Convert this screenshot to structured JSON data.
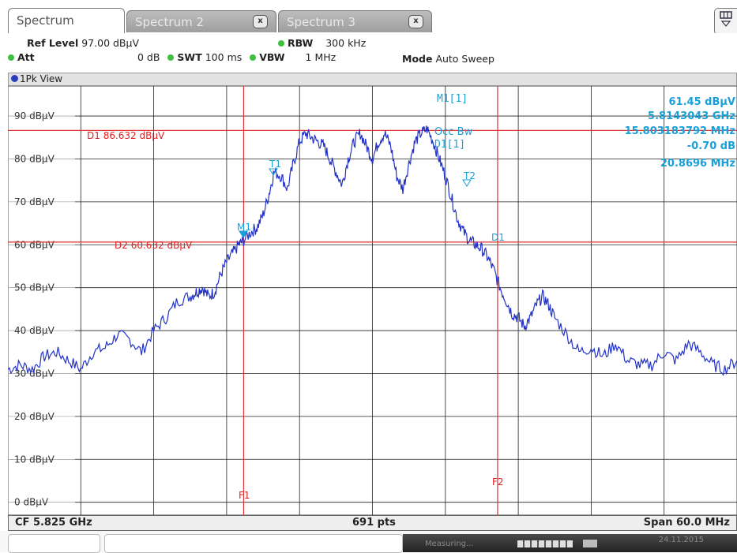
{
  "tabs": [
    {
      "label": "Spectrum",
      "active": true
    },
    {
      "label": "Spectrum 2",
      "active": false,
      "close": "x"
    },
    {
      "label": "Spectrum 3",
      "active": false,
      "close": "x"
    }
  ],
  "params": {
    "ref_level_label": "Ref Level",
    "ref_level_value": "97.00 dBµV",
    "att_label": "Att",
    "att_value": "0 dB",
    "swt_label": "SWT",
    "swt_value": "100 ms",
    "rbw_label": "RBW",
    "rbw_value": "300 kHz",
    "vbw_label": "VBW",
    "vbw_value": "1 MHz",
    "mode_label": "Mode",
    "mode_value": "Auto Sweep"
  },
  "view_label": "1Pk View",
  "markers": {
    "m1_label": "M1[1]",
    "m1_level": "61.45 dBµV",
    "m1_freq": "5.8143043 GHz",
    "occbw_label": "Occ Bw",
    "occbw_value": "15.803183792 MHz",
    "d1_label": "D1[1]",
    "d1_level": "-0.70 dB",
    "d1_freq": "20.8696 MHz"
  },
  "lines": {
    "d1_label": "D1  86.632 dBµV",
    "d2_label": "D2  60.632 dBµV",
    "f1_label": "F1",
    "f2_label": "F2",
    "t1_label": "T1",
    "t2_label": "T2",
    "m1_trace_label": "M1",
    "d1_trace_label": "D1"
  },
  "chart_data": {
    "type": "line",
    "y_tick_labels": [
      "90 dBµV",
      "80 dBµV",
      "70 dBµV",
      "60 dBµV",
      "50 dBµV",
      "40 dBµV",
      "30 dBµV",
      "20 dBµV",
      "10 dBµV",
      "0 dBµV"
    ],
    "y_ticks": [
      90,
      80,
      70,
      60,
      50,
      40,
      30,
      20,
      10,
      0
    ],
    "ylim": [
      -3,
      97
    ],
    "xlim": [
      -30,
      30
    ],
    "display_line_d1": 86.632,
    "display_line_d2": 60.632,
    "f1_offset": -10.6,
    "f2_offset": 10.3,
    "series": [
      {
        "color": "#2332c8",
        "x": [
          -30,
          -29,
          -28,
          -27,
          -26,
          -25,
          -24,
          -23,
          -22,
          -21,
          -20,
          -19,
          -18,
          -17,
          -16,
          -15,
          -14.5,
          -14,
          -13.5,
          -13,
          -12.5,
          -12,
          -11.5,
          -11,
          -10.6,
          -10,
          -9.5,
          -9,
          -8.5,
          -8.1,
          -7.5,
          -7,
          -6.5,
          -6,
          -5.5,
          -5,
          -4.5,
          -4,
          -3.5,
          -3,
          -2.5,
          -2,
          -1.5,
          -1,
          -0.5,
          0,
          0.5,
          1,
          1.5,
          2,
          2.5,
          3,
          3.5,
          4,
          4.5,
          5,
          5.5,
          6,
          6.5,
          7,
          7.5,
          8,
          8.5,
          9,
          9.5,
          10,
          10.5,
          11,
          11.5,
          12,
          12.5,
          13,
          13.5,
          14,
          14.5,
          15,
          16,
          17,
          18,
          19,
          20,
          21,
          22,
          23,
          24,
          25,
          26,
          27,
          28,
          29,
          30
        ],
        "y": [
          31,
          32,
          31,
          34,
          35,
          33,
          31,
          35,
          36,
          39,
          38,
          35,
          40,
          43,
          47,
          48,
          49,
          50,
          48,
          49,
          53,
          56,
          58,
          60,
          61,
          63,
          64,
          67,
          72,
          77,
          76,
          73,
          79,
          84,
          86,
          85,
          84,
          83,
          80,
          77,
          74,
          80,
          84,
          86,
          83,
          80,
          84,
          86,
          83,
          76,
          73,
          79,
          84,
          86,
          87,
          84,
          80,
          76,
          71,
          66,
          63,
          61,
          60,
          59,
          57,
          54,
          50,
          47,
          44,
          43,
          41,
          43,
          46,
          48,
          46,
          43,
          39,
          35,
          36,
          34,
          37,
          33,
          32,
          32,
          35,
          33,
          37,
          35,
          32,
          31,
          33
        ]
      }
    ]
  },
  "status": {
    "left": "CF 5.825 GHz",
    "center": "691 pts",
    "right": "Span 60.0 MHz"
  },
  "bottom": {
    "measuring": "Measuring...",
    "date": "24.11.2015"
  }
}
